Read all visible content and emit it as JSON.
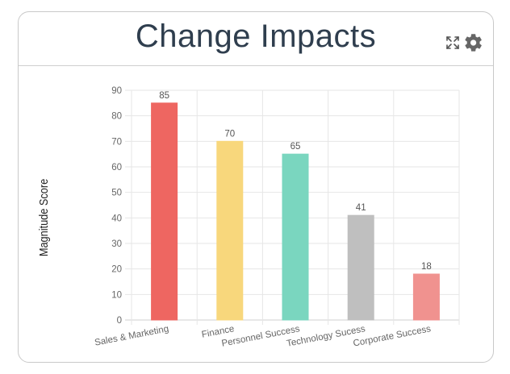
{
  "card": {
    "title": "Change Impacts",
    "tools": [
      "expand-icon",
      "gear-icon"
    ]
  },
  "colors": {
    "title": "#2f3e4e",
    "grid": "#e6e6e6",
    "axis_text": "#666666"
  },
  "chart_data": {
    "type": "bar",
    "title": "",
    "xlabel": "",
    "ylabel": "Magnitude Score",
    "ylim": [
      0,
      90
    ],
    "yticks": [
      0,
      10,
      20,
      30,
      40,
      50,
      60,
      70,
      80,
      90
    ],
    "categories": [
      "Sales & Marketing",
      "Finance",
      "Personnel Success",
      "Technology Sucess",
      "Corporate Success"
    ],
    "values": [
      85,
      70,
      65,
      41,
      18
    ],
    "bar_colors": [
      "#ee6661",
      "#f8d77c",
      "#7ad6bf",
      "#bfbfbf",
      "#f0928f"
    ],
    "data_labels": true,
    "grid": true,
    "legend": "none"
  }
}
